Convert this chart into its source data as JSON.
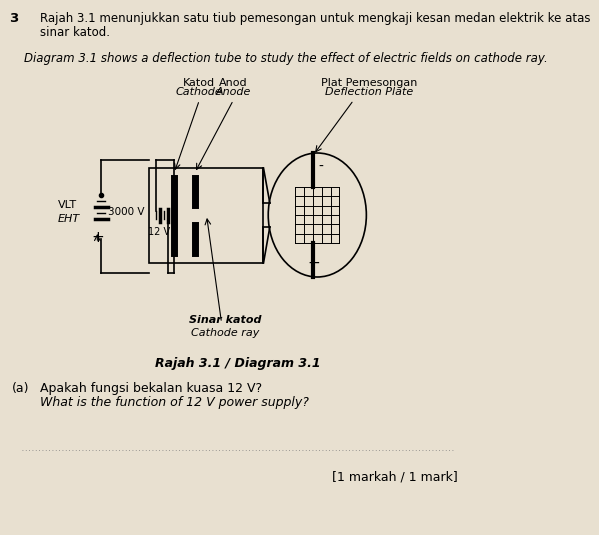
{
  "background_color": "#e8e0d0",
  "question_number": "3",
  "text_line1": "Rajah 3.1 menunjukkan satu tiub pemesongan untuk mengkaji kesan medan elektrik ke atas",
  "text_line2": "sinar katod.",
  "italic_text": "Diagram 3.1 shows a deflection tube to study the effect of electric fields on cathode ray.",
  "label_katod": "Katod",
  "label_cathode": "Cathode",
  "label_anod": "Anod",
  "label_anode": "Anode",
  "label_plat": "Plat Pemesongan",
  "label_deflection": "Deflection Plate",
  "label_vlt": "VLT",
  "label_eht": "EHT",
  "label_3000v": "3000 V",
  "label_12v": "12 V",
  "label_sinar": "Sinar katod",
  "label_cathode_ray": "Cathode ray",
  "label_diagram": "Rajah 3.1 / Diagram 3.1",
  "part_a_malay": "Apakah fungsi bekalan kuasa 12 V?",
  "part_a_english": "What is the function of 12 V power supply?",
  "mark_text": "[1 markah / 1 mark]",
  "part_label": "(a)"
}
